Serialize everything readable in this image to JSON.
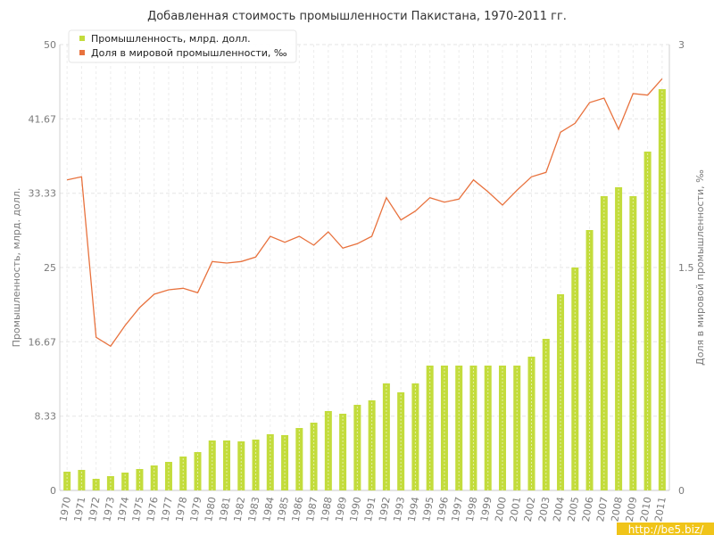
{
  "chart_data": {
    "type": "bar",
    "title": "Добавленная стоимость промышленности Пакистана, 1970-2011 гг.",
    "ylabel_left": "Промышленность, млрд. долл.",
    "ylabel_right": "Доля в мировой промышленности, ‰",
    "ylim_left": [
      0,
      50
    ],
    "ylim_right": [
      0,
      3
    ],
    "yticks_left": [
      "0",
      "8.33",
      "16.67",
      "25",
      "33.33",
      "41.67",
      "50"
    ],
    "yticks_right": [
      "0",
      "1.5",
      "3"
    ],
    "grid": true,
    "legend_position": "top-left",
    "categories": [
      "1970",
      "1971",
      "1972",
      "1973",
      "1974",
      "1975",
      "1976",
      "1977",
      "1978",
      "1979",
      "1980",
      "1981",
      "1982",
      "1983",
      "1984",
      "1985",
      "1986",
      "1987",
      "1988",
      "1989",
      "1990",
      "1991",
      "1992",
      "1993",
      "1994",
      "1995",
      "1996",
      "1997",
      "1998",
      "1999",
      "2000",
      "2001",
      "2002",
      "2003",
      "2004",
      "2005",
      "2006",
      "2007",
      "2008",
      "2009",
      "2010",
      "2011"
    ],
    "series": [
      {
        "name": "Промышленность, млрд. долл.",
        "type": "bar",
        "axis": "left",
        "color": "#c3dc3c",
        "values": [
          2.1,
          2.3,
          1.3,
          1.6,
          2.0,
          2.4,
          2.8,
          3.2,
          3.8,
          4.3,
          5.6,
          5.6,
          5.5,
          5.7,
          6.3,
          6.2,
          7.0,
          7.6,
          8.9,
          8.6,
          9.6,
          10.1,
          12.0,
          11.0,
          12.0,
          14.0,
          14.0,
          14.0,
          14.0,
          14.0,
          14.0,
          14.0,
          15.0,
          17.0,
          22.0,
          25.0,
          29.2,
          33.0,
          34.0,
          33.0,
          38.0,
          45.0
        ]
      },
      {
        "name": "Доля в мировой промышленности, ‰",
        "type": "line",
        "axis": "right",
        "color": "#e8723e",
        "values": [
          2.09,
          2.11,
          1.03,
          0.97,
          1.11,
          1.23,
          1.32,
          1.35,
          1.36,
          1.33,
          1.54,
          1.53,
          1.54,
          1.57,
          1.71,
          1.67,
          1.71,
          1.65,
          1.74,
          1.63,
          1.66,
          1.71,
          1.97,
          1.82,
          1.88,
          1.97,
          1.94,
          1.96,
          2.09,
          2.01,
          1.92,
          2.02,
          2.11,
          2.14,
          2.41,
          2.47,
          2.61,
          2.64,
          2.43,
          2.67,
          2.66,
          2.77
        ]
      }
    ]
  },
  "watermark": "http://be5.biz/"
}
